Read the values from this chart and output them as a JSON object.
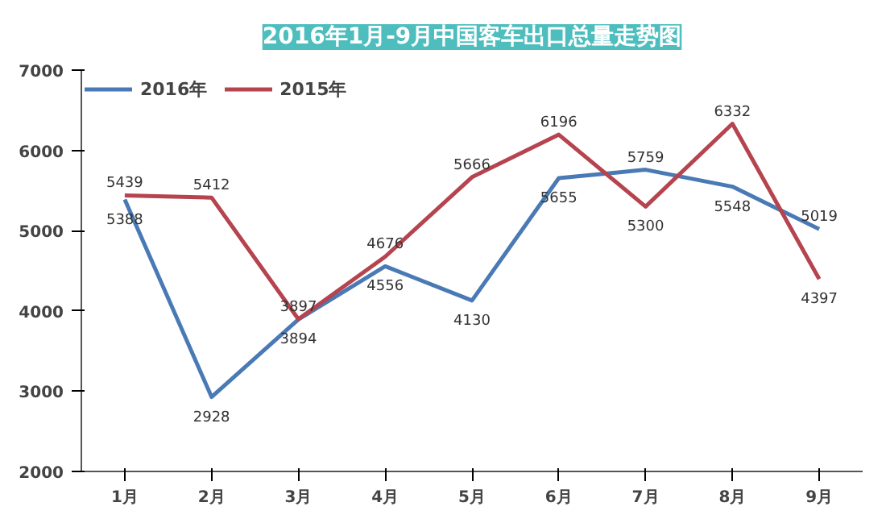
{
  "chart_data": {
    "type": "line",
    "title": "2016年1月-9月中国客车出口总量走势图",
    "categories": [
      "1月",
      "2月",
      "3月",
      "4月",
      "5月",
      "6月",
      "7月",
      "8月",
      "9月"
    ],
    "series": [
      {
        "name": "2016年",
        "color": "#4a7ab5",
        "values": [
          5388,
          2928,
          3894,
          4556,
          4130,
          5655,
          5759,
          5548,
          5019
        ]
      },
      {
        "name": "2015年",
        "color": "#b5444f",
        "values": [
          5439,
          5412,
          3897,
          4676,
          5666,
          6196,
          5300,
          6332,
          4397
        ]
      }
    ],
    "ylim": [
      2000,
      7000
    ],
    "yticks": [
      2000,
      3000,
      4000,
      5000,
      6000,
      7000
    ],
    "grid": false,
    "legend": "top left",
    "data_labels": true,
    "marker": "none",
    "line_style": "solid"
  }
}
